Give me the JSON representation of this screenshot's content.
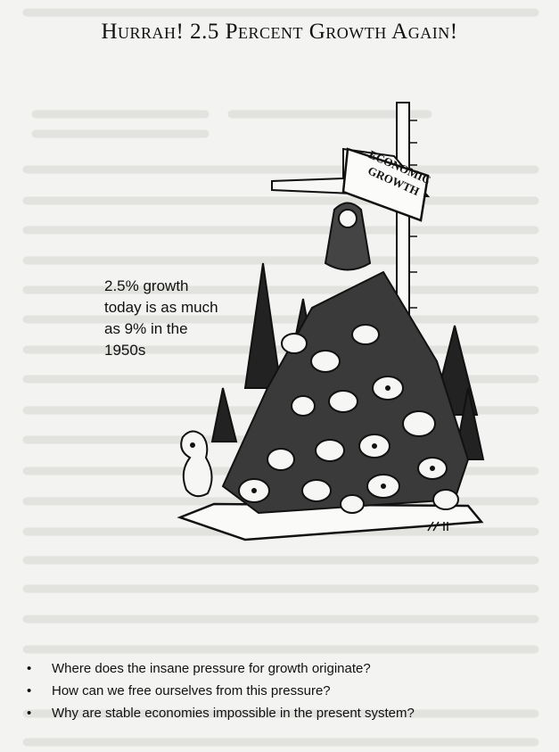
{
  "header": {
    "title": "Hurrah! 2.5 Percent Growth Again!"
  },
  "cartoon": {
    "caption": "2.5% growth today is as much as 9% in the 1950s",
    "sign": "Economic Growth"
  },
  "questions": [
    "Where does the insane pressure for growth originate?",
    "How can we free ourselves from this pressure?",
    "Why are stable economies impossible in the present system?"
  ]
}
